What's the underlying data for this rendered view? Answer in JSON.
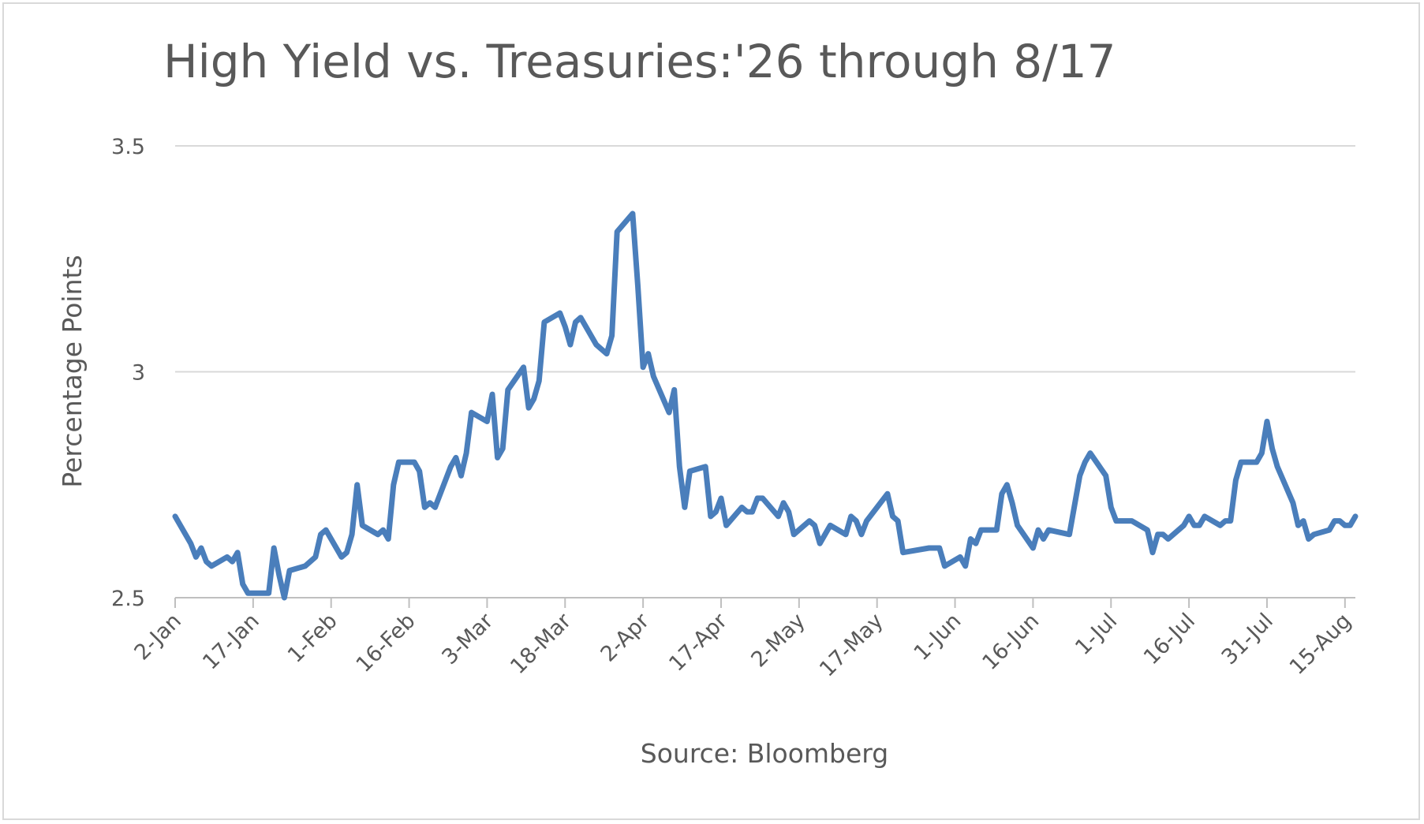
{
  "chart_data": {
    "type": "line",
    "title": "High Yield vs. Treasuries:'26 through 8/17",
    "xlabel": "Source: Bloomberg",
    "ylabel": "Percentage Points",
    "ylim": [
      2.5,
      3.5
    ],
    "yticks": [
      "2.5",
      "3",
      "3.5"
    ],
    "grid": true,
    "legend": "none",
    "xlim": [
      "2026-01-02",
      "2026-08-17"
    ],
    "xticks": [
      {
        "date": "2026-01-02",
        "label": "2-Jan"
      },
      {
        "date": "2026-01-17",
        "label": "17-Jan"
      },
      {
        "date": "2026-02-01",
        "label": "1-Feb"
      },
      {
        "date": "2026-02-16",
        "label": "16-Feb"
      },
      {
        "date": "2026-03-03",
        "label": "3-Mar"
      },
      {
        "date": "2026-03-18",
        "label": "18-Mar"
      },
      {
        "date": "2026-04-02",
        "label": "2-Apr"
      },
      {
        "date": "2026-04-17",
        "label": "17-Apr"
      },
      {
        "date": "2026-05-02",
        "label": "2-May"
      },
      {
        "date": "2026-05-17",
        "label": "17-May"
      },
      {
        "date": "2026-06-01",
        "label": "1-Jun"
      },
      {
        "date": "2026-06-16",
        "label": "16-Jun"
      },
      {
        "date": "2026-07-01",
        "label": "1-Jul"
      },
      {
        "date": "2026-07-16",
        "label": "16-Jul"
      },
      {
        "date": "2026-07-31",
        "label": "31-Jul"
      },
      {
        "date": "2026-08-15",
        "label": "15-Aug"
      }
    ],
    "series": [
      {
        "name": "",
        "color": "#4a7ebb",
        "points": [
          [
            "2026-01-02",
            2.68
          ],
          [
            "2026-01-05",
            2.62
          ],
          [
            "2026-01-06",
            2.59
          ],
          [
            "2026-01-07",
            2.61
          ],
          [
            "2026-01-08",
            2.58
          ],
          [
            "2026-01-09",
            2.57
          ],
          [
            "2026-01-12",
            2.59
          ],
          [
            "2026-01-13",
            2.58
          ],
          [
            "2026-01-14",
            2.6
          ],
          [
            "2026-01-15",
            2.53
          ],
          [
            "2026-01-16",
            2.51
          ],
          [
            "2026-01-20",
            2.51
          ],
          [
            "2026-01-21",
            2.61
          ],
          [
            "2026-01-22",
            2.55
          ],
          [
            "2026-01-23",
            2.5
          ],
          [
            "2026-01-24",
            2.56
          ],
          [
            "2026-01-27",
            2.57
          ],
          [
            "2026-01-29",
            2.59
          ],
          [
            "2026-01-30",
            2.64
          ],
          [
            "2026-01-31",
            2.65
          ],
          [
            "2026-02-03",
            2.59
          ],
          [
            "2026-02-04",
            2.6
          ],
          [
            "2026-02-05",
            2.64
          ],
          [
            "2026-02-06",
            2.75
          ],
          [
            "2026-02-07",
            2.66
          ],
          [
            "2026-02-10",
            2.64
          ],
          [
            "2026-02-11",
            2.65
          ],
          [
            "2026-02-12",
            2.63
          ],
          [
            "2026-02-13",
            2.75
          ],
          [
            "2026-02-14",
            2.8
          ],
          [
            "2026-02-17",
            2.8
          ],
          [
            "2026-02-18",
            2.78
          ],
          [
            "2026-02-19",
            2.7
          ],
          [
            "2026-02-20",
            2.71
          ],
          [
            "2026-02-21",
            2.7
          ],
          [
            "2026-02-24",
            2.79
          ],
          [
            "2026-02-25",
            2.81
          ],
          [
            "2026-02-26",
            2.77
          ],
          [
            "2026-02-27",
            2.82
          ],
          [
            "2026-02-28",
            2.91
          ],
          [
            "2026-03-03",
            2.89
          ],
          [
            "2026-03-04",
            2.95
          ],
          [
            "2026-03-05",
            2.81
          ],
          [
            "2026-03-06",
            2.83
          ],
          [
            "2026-03-07",
            2.96
          ],
          [
            "2026-03-10",
            3.01
          ],
          [
            "2026-03-11",
            2.92
          ],
          [
            "2026-03-12",
            2.94
          ],
          [
            "2026-03-13",
            2.98
          ],
          [
            "2026-03-14",
            3.11
          ],
          [
            "2026-03-17",
            3.13
          ],
          [
            "2026-03-18",
            3.1
          ],
          [
            "2026-03-19",
            3.06
          ],
          [
            "2026-03-20",
            3.11
          ],
          [
            "2026-03-21",
            3.12
          ],
          [
            "2026-03-24",
            3.06
          ],
          [
            "2026-03-25",
            3.05
          ],
          [
            "2026-03-26",
            3.04
          ],
          [
            "2026-03-27",
            3.08
          ],
          [
            "2026-03-28",
            3.31
          ],
          [
            "2026-03-31",
            3.35
          ],
          [
            "2026-04-01",
            3.19
          ],
          [
            "2026-04-02",
            3.01
          ],
          [
            "2026-04-03",
            3.04
          ],
          [
            "2026-04-04",
            2.99
          ],
          [
            "2026-04-07",
            2.91
          ],
          [
            "2026-04-08",
            2.96
          ],
          [
            "2026-04-09",
            2.79
          ],
          [
            "2026-04-10",
            2.7
          ],
          [
            "2026-04-11",
            2.78
          ],
          [
            "2026-04-14",
            2.79
          ],
          [
            "2026-04-15",
            2.68
          ],
          [
            "2026-04-16",
            2.69
          ],
          [
            "2026-04-17",
            2.72
          ],
          [
            "2026-04-18",
            2.66
          ],
          [
            "2026-04-21",
            2.7
          ],
          [
            "2026-04-22",
            2.69
          ],
          [
            "2026-04-23",
            2.69
          ],
          [
            "2026-04-24",
            2.72
          ],
          [
            "2026-04-25",
            2.72
          ],
          [
            "2026-04-28",
            2.68
          ],
          [
            "2026-04-29",
            2.71
          ],
          [
            "2026-04-30",
            2.69
          ],
          [
            "2026-05-01",
            2.64
          ],
          [
            "2026-05-04",
            2.67
          ],
          [
            "2026-05-05",
            2.66
          ],
          [
            "2026-05-06",
            2.62
          ],
          [
            "2026-05-08",
            2.66
          ],
          [
            "2026-05-11",
            2.64
          ],
          [
            "2026-05-12",
            2.68
          ],
          [
            "2026-05-13",
            2.67
          ],
          [
            "2026-05-14",
            2.64
          ],
          [
            "2026-05-15",
            2.67
          ],
          [
            "2026-05-19",
            2.73
          ],
          [
            "2026-05-20",
            2.68
          ],
          [
            "2026-05-21",
            2.67
          ],
          [
            "2026-05-22",
            2.6
          ],
          [
            "2026-05-27",
            2.61
          ],
          [
            "2026-05-29",
            2.61
          ],
          [
            "2026-05-30",
            2.57
          ],
          [
            "2026-06-02",
            2.59
          ],
          [
            "2026-06-03",
            2.57
          ],
          [
            "2026-06-04",
            2.63
          ],
          [
            "2026-06-05",
            2.62
          ],
          [
            "2026-06-06",
            2.65
          ],
          [
            "2026-06-09",
            2.65
          ],
          [
            "2026-06-10",
            2.73
          ],
          [
            "2026-06-11",
            2.75
          ],
          [
            "2026-06-12",
            2.71
          ],
          [
            "2026-06-13",
            2.66
          ],
          [
            "2026-06-16",
            2.61
          ],
          [
            "2026-06-17",
            2.65
          ],
          [
            "2026-06-18",
            2.63
          ],
          [
            "2026-06-19",
            2.65
          ],
          [
            "2026-06-23",
            2.64
          ],
          [
            "2026-06-25",
            2.77
          ],
          [
            "2026-06-26",
            2.8
          ],
          [
            "2026-06-27",
            2.82
          ],
          [
            "2026-06-30",
            2.77
          ],
          [
            "2026-07-01",
            2.7
          ],
          [
            "2026-07-02",
            2.67
          ],
          [
            "2026-07-05",
            2.67
          ],
          [
            "2026-07-08",
            2.65
          ],
          [
            "2026-07-09",
            2.6
          ],
          [
            "2026-07-10",
            2.64
          ],
          [
            "2026-07-11",
            2.64
          ],
          [
            "2026-07-12",
            2.63
          ],
          [
            "2026-07-15",
            2.66
          ],
          [
            "2026-07-16",
            2.68
          ],
          [
            "2026-07-17",
            2.66
          ],
          [
            "2026-07-18",
            2.66
          ],
          [
            "2026-07-19",
            2.68
          ],
          [
            "2026-07-22",
            2.66
          ],
          [
            "2026-07-23",
            2.67
          ],
          [
            "2026-07-24",
            2.67
          ],
          [
            "2026-07-25",
            2.76
          ],
          [
            "2026-07-26",
            2.8
          ],
          [
            "2026-07-29",
            2.8
          ],
          [
            "2026-07-30",
            2.82
          ],
          [
            "2026-07-31",
            2.89
          ],
          [
            "2026-08-01",
            2.83
          ],
          [
            "2026-08-02",
            2.79
          ],
          [
            "2026-08-05",
            2.71
          ],
          [
            "2026-08-06",
            2.66
          ],
          [
            "2026-08-07",
            2.67
          ],
          [
            "2026-08-08",
            2.63
          ],
          [
            "2026-08-09",
            2.64
          ],
          [
            "2026-08-12",
            2.65
          ],
          [
            "2026-08-13",
            2.67
          ],
          [
            "2026-08-14",
            2.67
          ],
          [
            "2026-08-15",
            2.66
          ],
          [
            "2026-08-16",
            2.66
          ],
          [
            "2026-08-17",
            2.68
          ]
        ]
      }
    ]
  }
}
